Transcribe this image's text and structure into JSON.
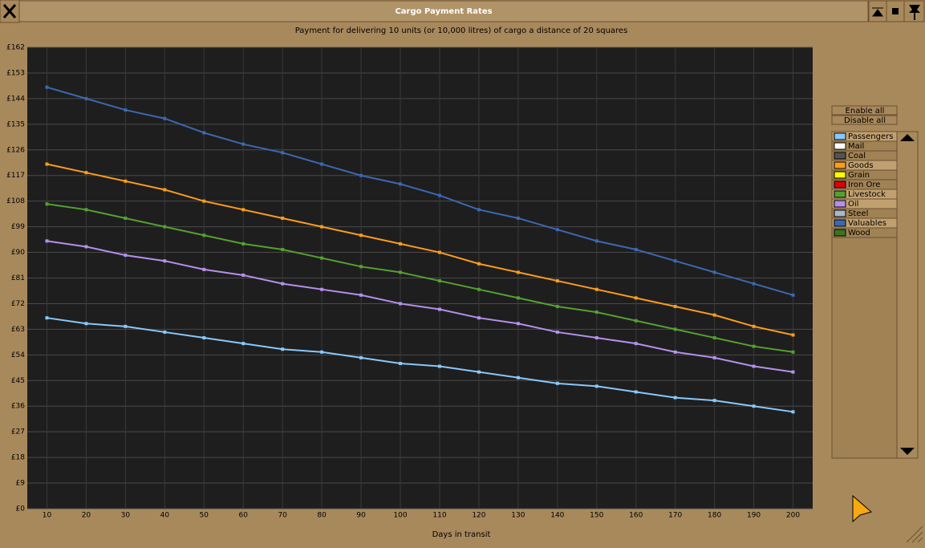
{
  "window": {
    "title": "Cargo Payment Rates"
  },
  "buttons": [
    "Enable all",
    "Disable all"
  ],
  "chart_data": {
    "type": "line",
    "title": "Payment for delivering 10 units (or 10,000 litres) of cargo a distance of 20 squares",
    "xlabel": "Days in transit",
    "x": [
      10,
      20,
      30,
      40,
      50,
      60,
      70,
      80,
      90,
      100,
      110,
      120,
      130,
      140,
      150,
      160,
      170,
      180,
      190,
      200
    ],
    "xlim": [
      5,
      205
    ],
    "xticks": [
      10,
      20,
      30,
      40,
      50,
      60,
      70,
      80,
      90,
      100,
      110,
      120,
      130,
      140,
      150,
      160,
      170,
      180,
      190,
      200
    ],
    "ylim": [
      0,
      162
    ],
    "yticks": [
      {
        "value": 0,
        "label": "£0"
      },
      {
        "value": 9,
        "label": "£9"
      },
      {
        "value": 18,
        "label": "£18"
      },
      {
        "value": 27,
        "label": "£27"
      },
      {
        "value": 36,
        "label": "£36"
      },
      {
        "value": 45,
        "label": "£45"
      },
      {
        "value": 54,
        "label": "£54"
      },
      {
        "value": 63,
        "label": "£63"
      },
      {
        "value": 72,
        "label": "£72"
      },
      {
        "value": 81,
        "label": "£81"
      },
      {
        "value": 90,
        "label": "£90"
      },
      {
        "value": 99,
        "label": "£99"
      },
      {
        "value": 108,
        "label": "£108"
      },
      {
        "value": 117,
        "label": "£117"
      },
      {
        "value": 126,
        "label": "£126"
      },
      {
        "value": 135,
        "label": "£135"
      },
      {
        "value": 144,
        "label": "£144"
      },
      {
        "value": 153,
        "label": "£153"
      },
      {
        "value": 162,
        "label": "£162"
      }
    ],
    "grid": true,
    "series": [
      {
        "name": "Passengers",
        "color": "#88c8fc",
        "visible": true,
        "values": [
          67,
          65,
          64,
          62,
          60,
          58,
          56,
          55,
          53,
          51,
          50,
          48,
          46,
          44,
          43,
          41,
          39,
          38,
          36,
          34
        ]
      },
      {
        "name": "Mail",
        "color": "#ffffff",
        "visible": false
      },
      {
        "name": "Coal",
        "color": "#545454",
        "visible": false
      },
      {
        "name": "Goods",
        "color": "#fc9c1c",
        "visible": true,
        "values": [
          121,
          118,
          115,
          112,
          108,
          105,
          102,
          99,
          96,
          93,
          90,
          86,
          83,
          80,
          77,
          74,
          71,
          68,
          64,
          61
        ]
      },
      {
        "name": "Grain",
        "color": "#fcfc00",
        "visible": false
      },
      {
        "name": "Iron Ore",
        "color": "#e00000",
        "visible": false
      },
      {
        "name": "Livestock",
        "color": "#54a030",
        "visible": true,
        "values": [
          107,
          105,
          102,
          99,
          96,
          93,
          91,
          88,
          85,
          83,
          80,
          77,
          74,
          71,
          69,
          66,
          63,
          60,
          57,
          55
        ]
      },
      {
        "name": "Oil",
        "color": "#b490ec",
        "visible": true,
        "values": [
          94,
          92,
          89,
          87,
          84,
          82,
          79,
          77,
          75,
          72,
          70,
          67,
          65,
          62,
          60,
          58,
          55,
          53,
          50,
          48
        ]
      },
      {
        "name": "Steel",
        "color": "#a8b8cc",
        "visible": false
      },
      {
        "name": "Valuables",
        "color": "#3c68b0",
        "visible": true,
        "values": [
          148,
          144,
          140,
          137,
          132,
          128,
          125,
          121,
          117,
          114,
          110,
          105,
          102,
          98,
          94,
          91,
          87,
          83,
          79,
          75
        ]
      },
      {
        "name": "Wood",
        "color": "#3c7420",
        "visible": false
      }
    ]
  }
}
